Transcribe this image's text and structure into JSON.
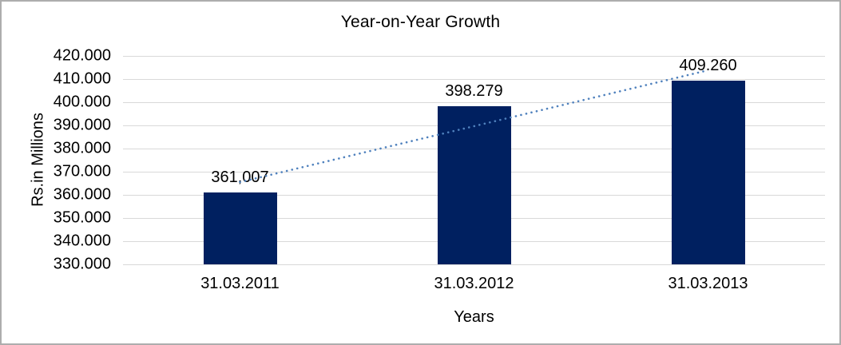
{
  "chart_data": {
    "type": "bar",
    "title": "Year-on-Year Growth",
    "xlabel": "Years",
    "ylabel": "Rs.in Millions",
    "categories": [
      "31.03.2011",
      "31.03.2012",
      "31.03.2013"
    ],
    "values": [
      361007,
      398279,
      409260
    ],
    "data_labels": [
      "361,007",
      "398.279",
      "409.260"
    ],
    "ylim": [
      330000,
      420000
    ],
    "ytick_step": 10000,
    "ytick_labels": [
      "420.000",
      "410.000",
      "400.000",
      "390.000",
      "380.000",
      "370.000",
      "360.000",
      "350.000",
      "340.000",
      "330.000"
    ],
    "grid": true,
    "legend": "none",
    "bar_color": "#002060",
    "gridline_color": "#d9d9d9",
    "trendline": {
      "type": "linear",
      "style": "dotted",
      "color": "#4f81bd",
      "start_value": 365500,
      "end_value": 413800
    }
  }
}
